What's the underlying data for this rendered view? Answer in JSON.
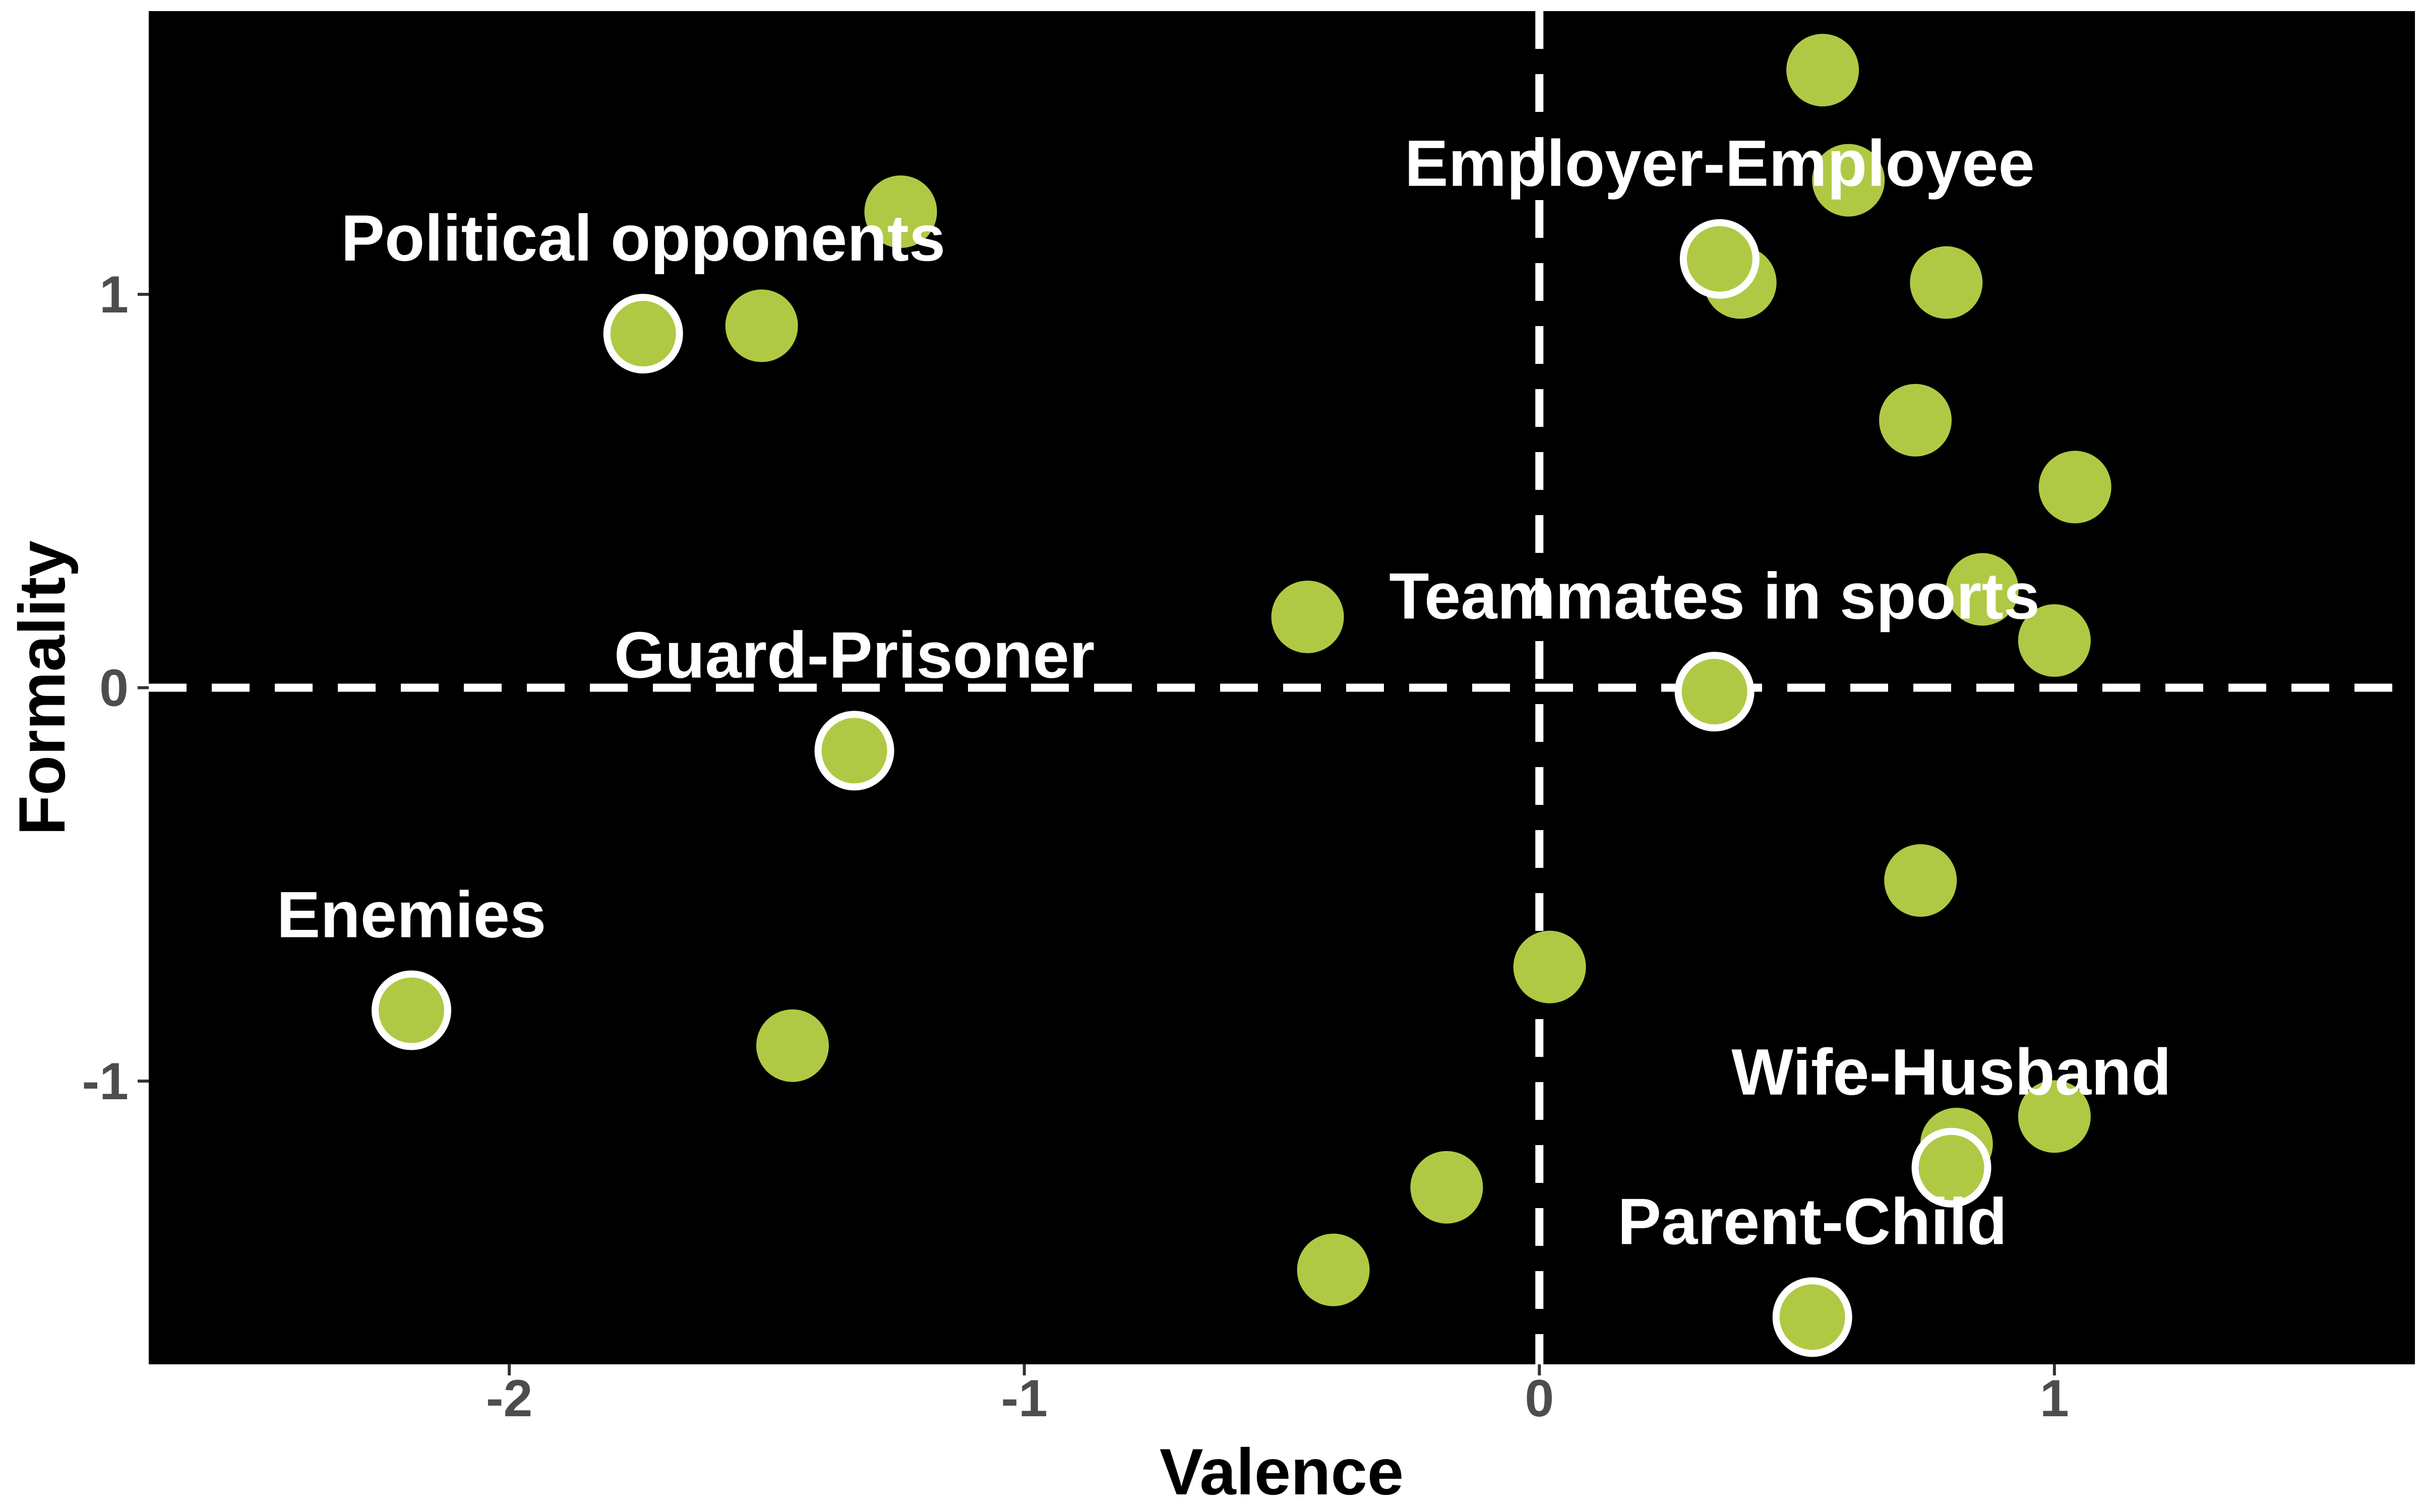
{
  "chart_data": {
    "type": "scatter",
    "title": "",
    "xlabel": "Valence",
    "ylabel": "Formality",
    "xlim": [
      -2.7,
      1.7
    ],
    "ylim": [
      -1.72,
      1.72
    ],
    "xticks": [
      -2,
      -1,
      0,
      1
    ],
    "yticks": [
      -1,
      0,
      1
    ],
    "background": "#000000",
    "grid": false,
    "legend": "none",
    "reference_lines": {
      "x": 0,
      "y": 0,
      "style": "dashed",
      "color": "#ffffff"
    },
    "colors": {
      "point": "#b0c944",
      "highlight_point": "#cfe95a",
      "highlight_ring": "#ffffff",
      "label": "#ffffff"
    },
    "points": [
      {
        "x": 0.55,
        "y": 1.57
      },
      {
        "x": 0.6,
        "y": 1.29
      },
      {
        "x": 0.39,
        "y": 1.03
      },
      {
        "x": 0.79,
        "y": 1.03
      },
      {
        "x": 0.73,
        "y": 0.68
      },
      {
        "x": 1.04,
        "y": 0.51
      },
      {
        "x": 0.86,
        "y": 0.25
      },
      {
        "x": 1.0,
        "y": 0.12
      },
      {
        "x": -0.45,
        "y": 0.18
      },
      {
        "x": -1.24,
        "y": 1.21
      },
      {
        "x": -1.51,
        "y": 0.92
      },
      {
        "x": 0.74,
        "y": -0.49
      },
      {
        "x": 0.02,
        "y": -0.71
      },
      {
        "x": -1.45,
        "y": -0.91
      },
      {
        "x": 1.0,
        "y": -1.09
      },
      {
        "x": 0.81,
        "y": -1.16
      },
      {
        "x": -0.18,
        "y": -1.27
      },
      {
        "x": -0.4,
        "y": -1.48
      }
    ],
    "highlighted": [
      {
        "label": "Political opponents",
        "x": -1.74,
        "y": 0.9
      },
      {
        "label": "Employer-Employee",
        "x": 0.35,
        "y": 1.09
      },
      {
        "label": "Teammates in sports",
        "x": 0.34,
        "y": -0.01
      },
      {
        "label": "Guard-Prisoner",
        "x": -1.33,
        "y": -0.16
      },
      {
        "label": "Enemies",
        "x": -2.19,
        "y": -0.82
      },
      {
        "label": "Wife-Husband",
        "x": 0.8,
        "y": -1.22
      },
      {
        "label": "Parent-Child",
        "x": 0.53,
        "y": -1.6
      }
    ]
  }
}
